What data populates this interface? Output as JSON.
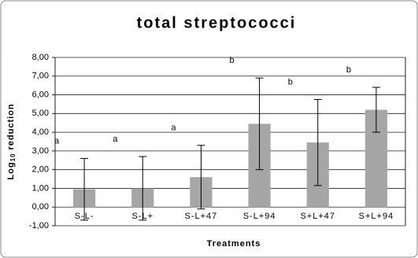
{
  "chart_data": {
    "type": "bar",
    "title": "total streptococci",
    "xlabel": "Treatments",
    "ylabel": [
      "Log",
      "10",
      "reduction"
    ],
    "categories": [
      "S-L-",
      "S-L+",
      "S-L+47",
      "S-L+94",
      "S+L+47",
      "S+L+94"
    ],
    "values": [
      0.95,
      1.0,
      1.6,
      4.45,
      3.45,
      5.2
    ],
    "errors": [
      1.65,
      1.7,
      1.7,
      2.45,
      2.3,
      1.2
    ],
    "letters": [
      "a",
      "a",
      "a",
      "b",
      "b",
      "b"
    ],
    "color": "#a6a6a6",
    "ylim": [
      -1,
      8
    ],
    "yticks": [
      {
        "value": -1,
        "label": "-1,00"
      },
      {
        "value": 0,
        "label": "0,00"
      },
      {
        "value": 1,
        "label": "1,00"
      },
      {
        "value": 2,
        "label": "2,00"
      },
      {
        "value": 3,
        "label": "3,00"
      },
      {
        "value": 4,
        "label": "4,00"
      },
      {
        "value": 5,
        "label": "5,00"
      },
      {
        "value": 6,
        "label": "6,00"
      },
      {
        "value": 7,
        "label": "7,00"
      },
      {
        "value": 8,
        "label": "8,00"
      }
    ],
    "grid": true
  }
}
